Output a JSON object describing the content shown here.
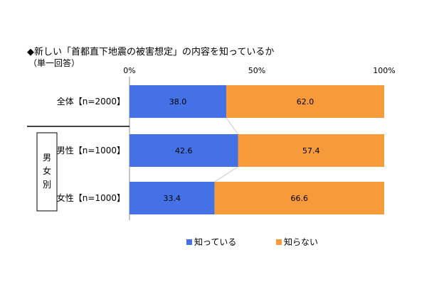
{
  "title": "◆新しい「首都直下地震の被害想定」の内容を知っているか",
  "subtitle": "（単一回答）",
  "chart_data": {
    "type": "bar",
    "orientation": "horizontal",
    "stacked": true,
    "percent": true,
    "xlim": [
      0,
      100
    ],
    "x_ticks": [
      "0%",
      "50%",
      "100%"
    ],
    "categories": [
      "全体【n=2000】",
      "男性【n=1000】",
      "女性【n=1000】"
    ],
    "group_label": "男女別",
    "series": [
      {
        "name": "知っている",
        "color": "#4472e6",
        "values": [
          38.0,
          42.6,
          33.4
        ]
      },
      {
        "name": "知らない",
        "color": "#f79a3a",
        "values": [
          62.0,
          57.4,
          66.6
        ]
      }
    ],
    "value_labels": [
      [
        "38.0",
        "42.6",
        "33.4"
      ],
      [
        "62.0",
        "57.4",
        "66.6"
      ]
    ],
    "legend_position": "bottom",
    "grid": false
  }
}
